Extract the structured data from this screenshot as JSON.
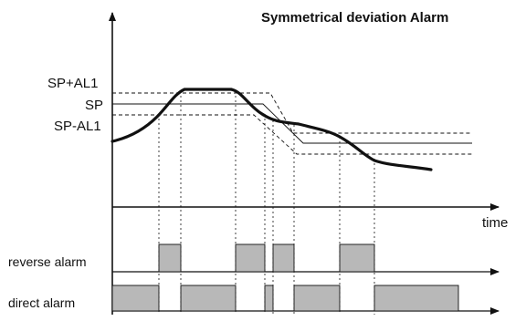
{
  "title": "Symmetrical deviation Alarm",
  "labels": {
    "sp_plus": "SP+AL1",
    "sp": "SP",
    "sp_minus": "SP-AL1",
    "time": "time",
    "reverse": "reverse alarm",
    "direct": "direct alarm"
  },
  "colors": {
    "curve": "#111111",
    "axis": "#111111",
    "alarm_fill": "#b8b8b8",
    "band_dashed": "#111111"
  }
}
